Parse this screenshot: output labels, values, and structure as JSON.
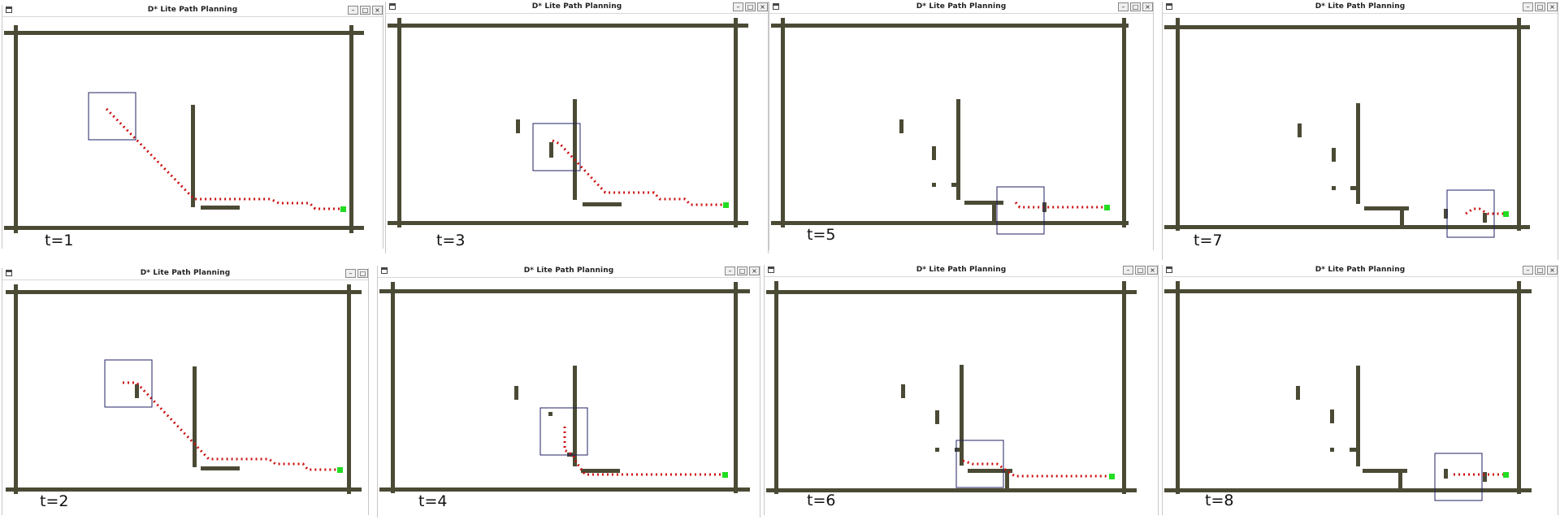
{
  "window_title": "D* Lite Path Planning",
  "controls": {
    "minimize": "–",
    "maximize": "□",
    "close": "×"
  },
  "colors": {
    "wall": "#4b4a35",
    "path": "#cc1111",
    "goal": "#22dd22",
    "sensor_box": "#222266"
  },
  "panels": [
    {
      "time_label": "t=1"
    },
    {
      "time_label": "t=3"
    },
    {
      "time_label": "t=5"
    },
    {
      "time_label": "t=7"
    },
    {
      "time_label": "t=2"
    },
    {
      "time_label": "t=4"
    },
    {
      "time_label": "t=6"
    },
    {
      "time_label": "t=8"
    }
  ]
}
